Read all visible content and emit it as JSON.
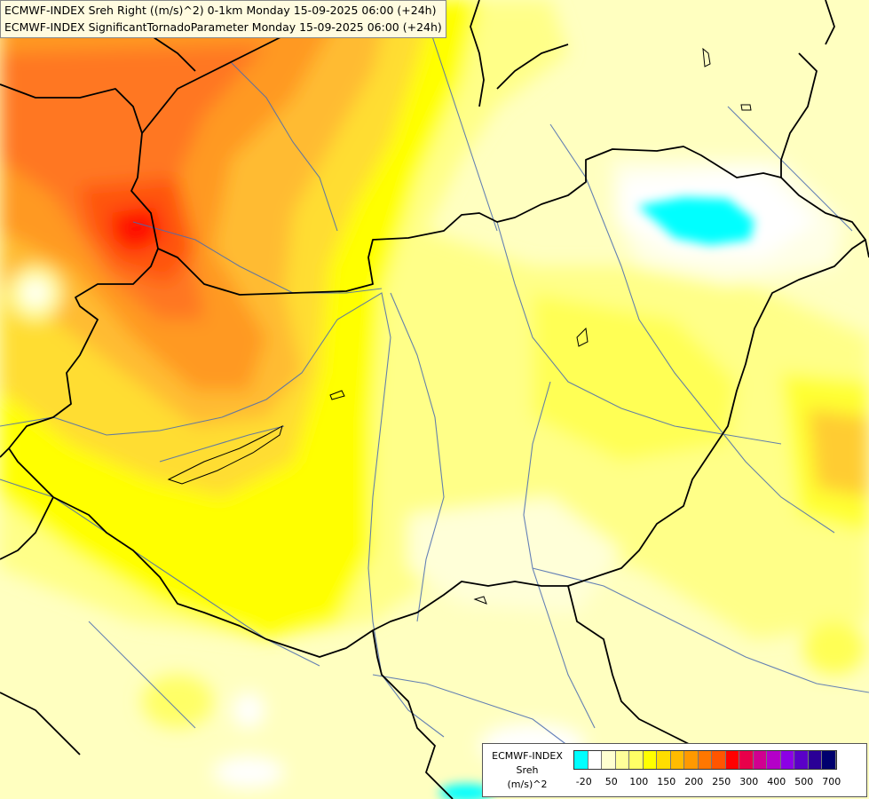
{
  "title": {
    "line1": "ECMWF-INDEX Sreh Right ((m/s)^2) 0-1km Monday 15-09-2025 06:00 (+24h)",
    "line2": "ECMWF-INDEX SignificantTornadoParameter Monday 15-09-2025 06:00 (+24h)"
  },
  "legend": {
    "line1": "ECMWF-INDEX",
    "line2": "Sreh",
    "line3": "(m/s)^2",
    "colors": [
      "#00ffff",
      "#ffffff",
      "#ffffd0",
      "#ffff99",
      "#ffff66",
      "#ffff00",
      "#ffdd00",
      "#ffbb00",
      "#ff9900",
      "#ff7700",
      "#ff5500",
      "#ff0000",
      "#e8004a",
      "#d00090",
      "#b400c8",
      "#8c00e6",
      "#5a00c8",
      "#2a0096",
      "#00006e"
    ],
    "ticks": [
      "-20",
      "50",
      "100",
      "150",
      "200",
      "250",
      "300",
      "400",
      "500",
      "700"
    ]
  },
  "map": {
    "field_colors": {
      "base": "#ffffc0",
      "yellow": "#ffff66",
      "bright_yellow": "#ffff00",
      "gold": "#ffdd33",
      "orange_light": "#ffbb33",
      "orange": "#ff9922",
      "orange_dark": "#ff7722",
      "red": "#ff2200",
      "white": "#ffffff",
      "cyan": "#00ffff"
    },
    "border_color": "#000000",
    "river_color": "#4a6bb0"
  }
}
